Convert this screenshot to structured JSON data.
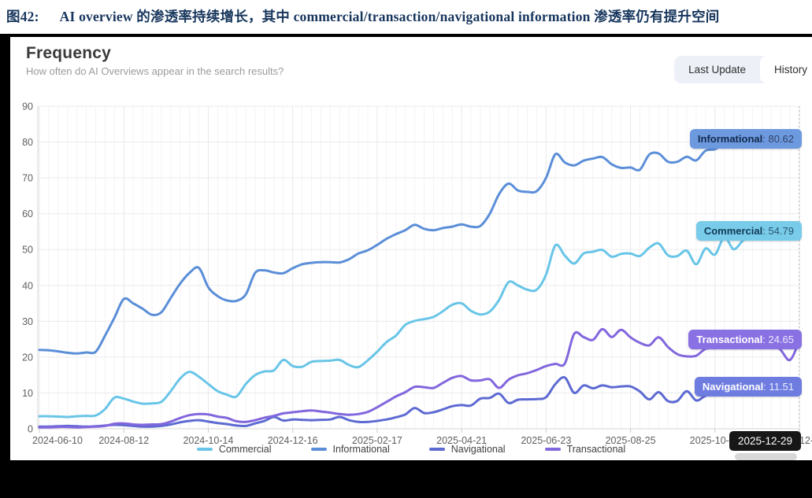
{
  "figure_label": "图42:",
  "figure_title": "AI overview 的渗透率持续增长，其中 commercial/transaction/navigational information 渗透率仍有提升空间",
  "card": {
    "title": "Frequency",
    "subtitle": "How often do AI Overviews appear in the search results?",
    "toggle": {
      "last_update_label": "Last Update",
      "history_label": "History",
      "active": "History"
    }
  },
  "tooltip_date": "2025-12-29",
  "chart_data": {
    "type": "line",
    "title": "Frequency",
    "subtitle": "How often do AI Overviews appear in the search results?",
    "ylim": [
      0,
      90
    ],
    "y_ticks": [
      0,
      10,
      20,
      30,
      40,
      50,
      60,
      70,
      80,
      90
    ],
    "x_tick_interval_weeks": 9,
    "x_tick_labels": [
      "2024-06-10",
      "2024-08-12",
      "2024-10-14",
      "2024-12-16",
      "2025-02-17",
      "2025-04-21",
      "2025-06-23",
      "2025-08-25",
      "2025-10-27",
      "2025-12-29"
    ],
    "grid": true,
    "legend_position": "bottom",
    "legend": [
      "Commercial",
      "Informational",
      "Navigational",
      "Transactional"
    ],
    "hover_date": "2025-12-29",
    "series": [
      {
        "name": "Commercial",
        "color": "#68c5e8",
        "final_value": 54.79,
        "values": [
          3.5,
          3.5,
          3.4,
          3.3,
          3.5,
          3.6,
          3.7,
          5.5,
          8.7,
          8.4,
          7.6,
          7.0,
          7.1,
          7.5,
          10.5,
          14.0,
          15.9,
          14.5,
          12.5,
          10.5,
          9.5,
          9.0,
          12.5,
          15.0,
          16.0,
          16.3,
          19.2,
          17.5,
          17.3,
          18.7,
          18.9,
          19.0,
          19.2,
          17.8,
          17.2,
          19.1,
          21.5,
          24.2,
          26.0,
          29.0,
          30.1,
          30.6,
          31.2,
          32.8,
          34.6,
          35.0,
          32.9,
          31.9,
          32.7,
          36.0,
          40.9,
          40.0,
          38.8,
          38.8,
          43.0,
          51.2,
          48.3,
          46.1,
          48.9,
          49.4,
          49.9,
          48.0,
          48.8,
          48.9,
          48.2,
          50.5,
          51.7,
          48.4,
          48.2,
          49.7,
          45.9,
          50.3,
          48.6,
          53.4,
          50.1,
          52.5,
          53.5,
          53.3,
          54.5,
          53.8,
          55.6,
          54.79
        ]
      },
      {
        "name": "Informational",
        "color": "#5b8ed8",
        "final_value": 80.62,
        "values": [
          22.0,
          21.9,
          21.6,
          21.2,
          21.0,
          21.3,
          21.5,
          26.0,
          31.0,
          36.2,
          35.0,
          33.5,
          31.8,
          32.5,
          36.5,
          40.5,
          43.5,
          44.9,
          39.5,
          37.0,
          35.8,
          35.7,
          37.5,
          43.5,
          44.2,
          43.6,
          43.4,
          44.8,
          45.9,
          46.3,
          46.5,
          46.5,
          46.4,
          47.3,
          48.9,
          49.8,
          51.3,
          53.0,
          54.3,
          55.4,
          56.9,
          55.8,
          55.4,
          56.0,
          56.4,
          57.0,
          56.4,
          56.6,
          60.0,
          65.5,
          68.4,
          66.5,
          66.1,
          66.3,
          70.0,
          76.6,
          74.3,
          73.5,
          74.8,
          75.4,
          75.8,
          73.8,
          72.8,
          72.9,
          72.3,
          76.5,
          76.8,
          74.5,
          74.5,
          75.9,
          74.9,
          77.6,
          78.0,
          79.5,
          78.8,
          79.5,
          80.0,
          79.6,
          80.2,
          79.8,
          80.4,
          80.62
        ]
      },
      {
        "name": "Navigational",
        "color": "#5c6ad2",
        "final_value": 11.51,
        "values": [
          0.6,
          0.6,
          0.7,
          0.8,
          0.7,
          0.6,
          0.7,
          0.9,
          1.1,
          1.0,
          0.8,
          0.6,
          0.6,
          0.8,
          1.2,
          1.8,
          2.2,
          2.4,
          2.0,
          1.6,
          1.3,
          0.9,
          0.8,
          1.5,
          2.2,
          3.3,
          2.3,
          2.6,
          2.5,
          2.4,
          2.5,
          2.6,
          3.3,
          2.4,
          1.9,
          1.9,
          2.2,
          2.6,
          3.2,
          4.0,
          5.8,
          4.4,
          4.6,
          5.4,
          6.3,
          6.6,
          6.5,
          8.4,
          8.6,
          9.8,
          7.2,
          8.1,
          8.2,
          8.3,
          8.8,
          12.5,
          14.3,
          10.0,
          12.1,
          11.3,
          12.1,
          11.6,
          11.8,
          11.8,
          10.4,
          8.2,
          10.2,
          7.7,
          7.8,
          10.5,
          7.9,
          9.2,
          9.6,
          9.5,
          10.0,
          10.5,
          11.0,
          10.4,
          11.2,
          10.8,
          11.3,
          11.51
        ]
      },
      {
        "name": "Transactional",
        "color": "#8266dd",
        "final_value": 24.65,
        "values": [
          0.4,
          0.4,
          0.5,
          0.5,
          0.4,
          0.5,
          0.6,
          0.8,
          1.4,
          1.5,
          1.2,
          1.1,
          1.2,
          1.3,
          2.0,
          3.0,
          3.8,
          4.1,
          4.0,
          3.4,
          3.0,
          2.1,
          1.9,
          2.4,
          3.1,
          3.6,
          4.3,
          4.6,
          4.9,
          5.1,
          4.8,
          4.5,
          4.1,
          3.9,
          4.1,
          4.7,
          6.0,
          7.5,
          9.0,
          10.2,
          11.7,
          11.6,
          11.4,
          12.8,
          14.2,
          14.7,
          13.5,
          13.5,
          13.8,
          11.4,
          13.7,
          14.9,
          15.5,
          16.4,
          17.5,
          18.1,
          18.2,
          26.5,
          25.6,
          24.8,
          27.8,
          25.6,
          27.6,
          25.5,
          24.0,
          23.3,
          25.5,
          22.8,
          20.8,
          20.2,
          20.4,
          22.3,
          22.5,
          22.8,
          23.0,
          23.5,
          23.8,
          23.5,
          24.0,
          22.0,
          19.2,
          24.65
        ]
      }
    ],
    "end_labels": [
      {
        "series": "Informational",
        "display": "80.62",
        "value": 80.62,
        "bg": "#6d9ade",
        "label_color": "#13294e",
        "value_color": "#32426a"
      },
      {
        "series": "Commercial",
        "display": "54.79",
        "value": 54.79,
        "bg": "#79cbea",
        "label_color": "#103a55",
        "value_color": "#27566f"
      },
      {
        "series": "Transactional",
        "display": "24.65",
        "value": 24.65,
        "bg": "#8a71e3",
        "label_color": "#ffffff",
        "value_color": "#ece9fc"
      },
      {
        "series": "Navigational",
        "display": "11.51",
        "value": 11.51,
        "bg": "#6e7ce0",
        "label_color": "#ffffff",
        "value_color": "#e9edfc"
      }
    ]
  }
}
